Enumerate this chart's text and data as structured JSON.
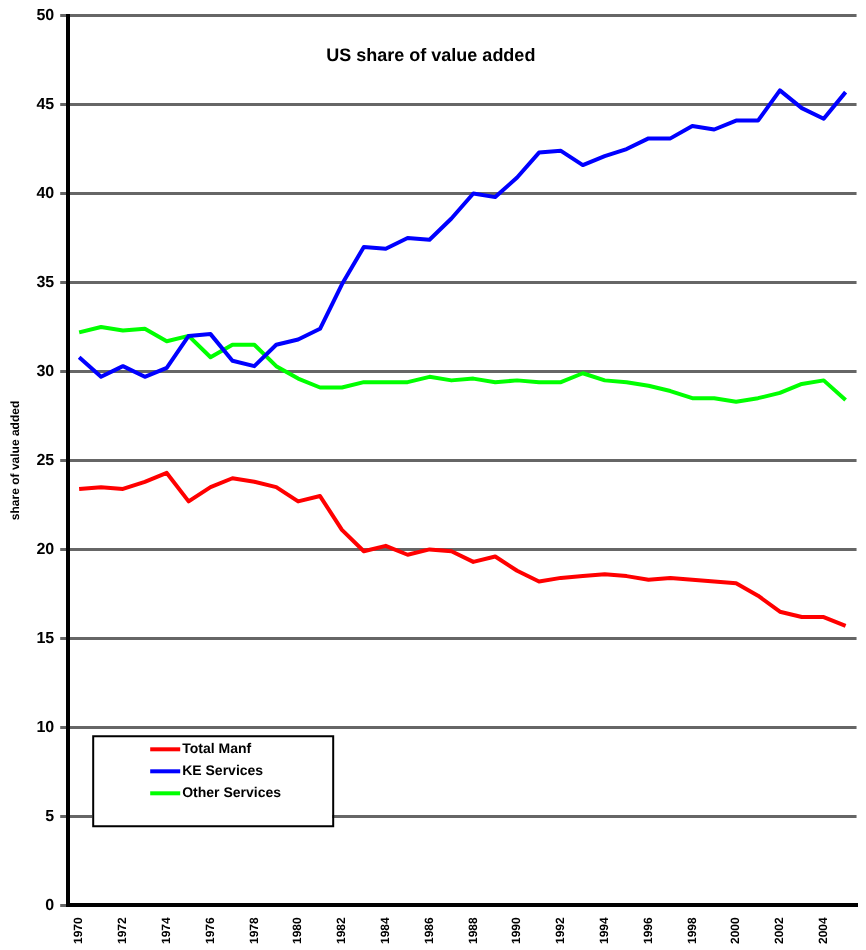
{
  "chart_data": {
    "type": "line",
    "title": "US share of value added",
    "ylabel": "share of value added",
    "categories": [
      "1970",
      null,
      "1972",
      null,
      "1974",
      null,
      "1976",
      null,
      "1978",
      null,
      "1980",
      null,
      "1982",
      null,
      "1984",
      null,
      "1986",
      null,
      "1988",
      null,
      "1990",
      null,
      "1992",
      null,
      "1994",
      null,
      "1996",
      null,
      "1998",
      null,
      "2000",
      null,
      "2002",
      null,
      "2004",
      null
    ],
    "series": [
      {
        "name": "Total Manf",
        "color": "#ff0000",
        "values": [
          23.4,
          23.5,
          23.4,
          23.8,
          24.3,
          22.7,
          23.5,
          24.0,
          23.8,
          23.5,
          22.7,
          23.0,
          21.1,
          19.9,
          20.2,
          19.7,
          20.0,
          19.9,
          19.3,
          19.6,
          18.8,
          18.2,
          18.4,
          18.5,
          18.6,
          18.5,
          18.3,
          18.4,
          18.3,
          18.2,
          18.1,
          17.4,
          16.5,
          16.2,
          16.2,
          15.7
        ]
      },
      {
        "name": "KE Services",
        "color": "#0000ff",
        "values": [
          30.8,
          29.7,
          30.3,
          29.7,
          30.2,
          32.0,
          32.1,
          30.6,
          30.3,
          31.5,
          31.8,
          32.4,
          34.9,
          37.0,
          36.9,
          37.5,
          37.4,
          38.6,
          40.0,
          39.8,
          40.9,
          42.3,
          42.4,
          41.6,
          42.1,
          42.5,
          43.1,
          43.1,
          43.8,
          43.6,
          44.1,
          44.1,
          45.8,
          44.8,
          44.2,
          45.7
        ]
      },
      {
        "name": "Other Services",
        "color": "#00ff00",
        "values": [
          32.2,
          32.5,
          32.3,
          32.4,
          31.7,
          32.0,
          30.8,
          31.5,
          31.5,
          30.3,
          29.6,
          29.1,
          29.1,
          29.4,
          29.4,
          29.4,
          29.7,
          29.5,
          29.6,
          29.4,
          29.5,
          29.4,
          29.4,
          29.9,
          29.5,
          29.4,
          29.2,
          28.9,
          28.5,
          28.5,
          28.3,
          28.5,
          28.8,
          29.3,
          29.5,
          28.4
        ]
      }
    ],
    "ylim": [
      0,
      50
    ],
    "yticks": [
      0,
      5,
      10,
      15,
      20,
      25,
      30,
      35,
      40,
      45,
      50
    ],
    "grid": "y",
    "legend": "bottom left",
    "marker": "none",
    "line_style": "solid"
  }
}
